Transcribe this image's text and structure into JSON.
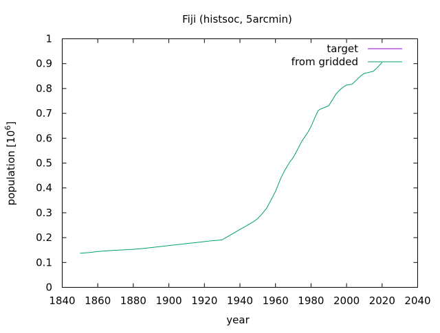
{
  "chart_data": {
    "type": "line",
    "title": "Fiji (histsoc, 5arcmin)",
    "xlabel": "year",
    "ylabel_main": "population [10",
    "ylabel_exp": "6",
    "ylabel_tail": "]",
    "xlim": [
      1840,
      2040
    ],
    "ylim": [
      0,
      1
    ],
    "x_ticks": [
      1840,
      1860,
      1880,
      1900,
      1920,
      1940,
      1960,
      1980,
      2000,
      2020,
      2040
    ],
    "y_ticks": [
      0,
      0.1,
      0.2,
      0.3,
      0.4,
      0.5,
      0.6,
      0.7,
      0.8,
      0.9,
      1
    ],
    "grid": false,
    "legend_position": "top-right",
    "series": [
      {
        "name": "target",
        "color": "#9400d3",
        "x": [],
        "values": []
      },
      {
        "name": "from gridded",
        "color": "#009e73",
        "x": [
          1850,
          1855,
          1860,
          1865,
          1870,
          1875,
          1880,
          1885,
          1890,
          1895,
          1900,
          1905,
          1910,
          1915,
          1920,
          1925,
          1930,
          1935,
          1940,
          1945,
          1948,
          1950,
          1952,
          1955,
          1958,
          1960,
          1963,
          1965,
          1968,
          1970,
          1972,
          1975,
          1978,
          1980,
          1982,
          1984,
          1985,
          1987,
          1990,
          1992,
          1994,
          1996,
          1998,
          2000,
          2003,
          2005,
          2008,
          2010,
          2012,
          2015,
          2017,
          2020
        ],
        "values": [
          0.137,
          0.14,
          0.144,
          0.147,
          0.149,
          0.151,
          0.153,
          0.156,
          0.16,
          0.164,
          0.168,
          0.172,
          0.176,
          0.18,
          0.184,
          0.188,
          0.191,
          0.212,
          0.233,
          0.253,
          0.266,
          0.277,
          0.292,
          0.318,
          0.358,
          0.386,
          0.439,
          0.468,
          0.504,
          0.522,
          0.549,
          0.59,
          0.621,
          0.647,
          0.68,
          0.711,
          0.716,
          0.722,
          0.731,
          0.754,
          0.777,
          0.793,
          0.805,
          0.814,
          0.817,
          0.83,
          0.851,
          0.861,
          0.864,
          0.869,
          0.882,
          0.905
        ]
      }
    ]
  }
}
